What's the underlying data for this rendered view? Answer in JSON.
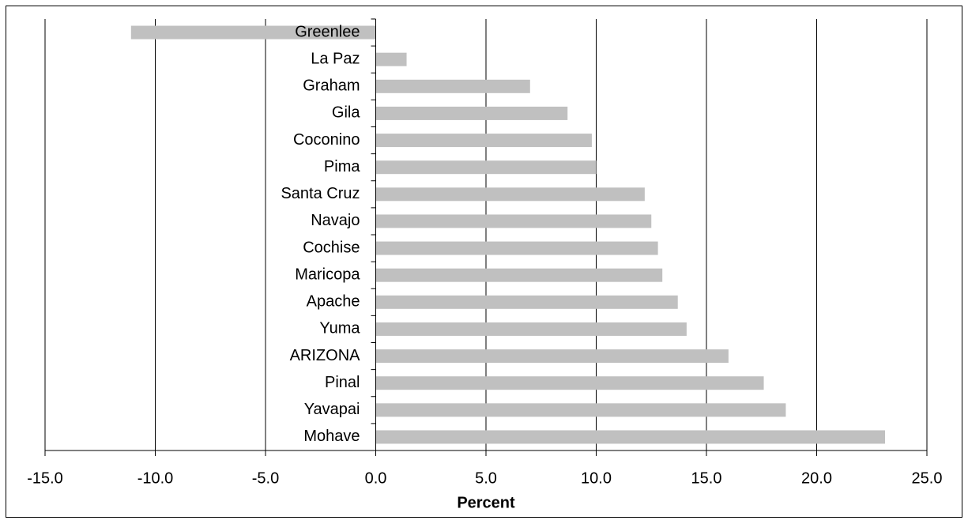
{
  "chart_data": {
    "type": "barh",
    "x_label": "Percent",
    "categories": [
      "Greenlee",
      "La Paz",
      "Graham",
      "Gila",
      "Coconino",
      "Pima",
      "Santa Cruz",
      "Navajo",
      "Cochise",
      "Maricopa",
      "Apache",
      "Yuma",
      "ARIZONA",
      "Pinal",
      "Yavapai",
      "Mohave"
    ],
    "values": [
      -11.1,
      1.4,
      7.0,
      8.7,
      9.8,
      10.0,
      12.2,
      12.5,
      12.8,
      13.0,
      13.7,
      14.1,
      16.0,
      17.6,
      18.6,
      23.1
    ],
    "color": "#c0c0c0",
    "xlim": [
      -15,
      25
    ],
    "xticks": [
      {
        "value": -15,
        "label": "-15.0"
      },
      {
        "value": -10,
        "label": "-10.0"
      },
      {
        "value": -5,
        "label": "-5.0"
      },
      {
        "value": 0,
        "label": "0.0"
      },
      {
        "value": 5,
        "label": "5.0"
      },
      {
        "value": 10,
        "label": "10.0"
      },
      {
        "value": 15,
        "label": "15.0"
      },
      {
        "value": 20,
        "label": "20.0"
      },
      {
        "value": 25,
        "label": "25.0"
      }
    ],
    "grid": true
  }
}
